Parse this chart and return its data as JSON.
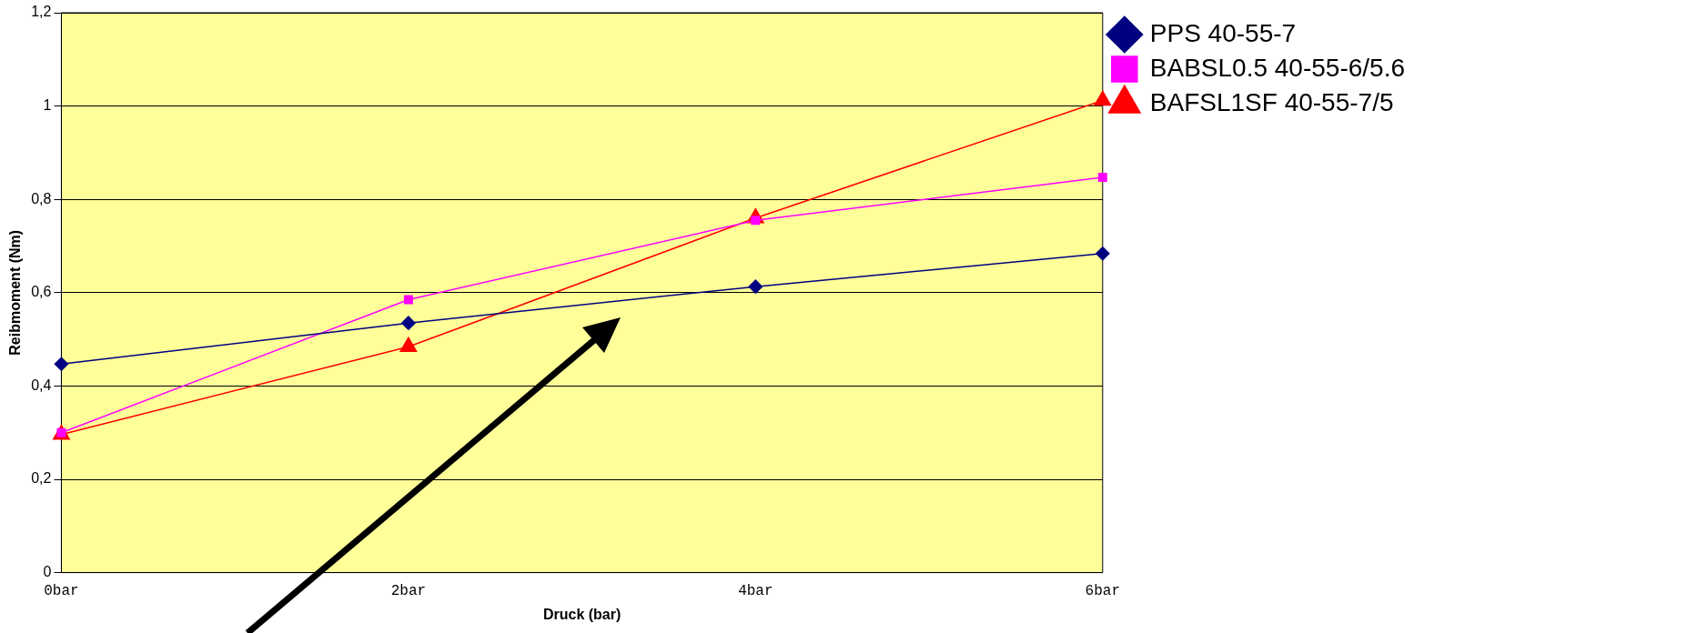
{
  "chart_data": {
    "type": "line",
    "xlabel": "Druck (bar)",
    "ylabel": "Reibmoment (Nm)",
    "categories": [
      "0bar",
      "2bar",
      "4bar",
      "6bar"
    ],
    "series": [
      {
        "name": "PPS 40-55-7",
        "color": "#000080",
        "marker": "diamond",
        "values": [
          0.447,
          0.535,
          0.613,
          0.684
        ]
      },
      {
        "name": "BABSL0.5 40-55-6/5.6",
        "color": "#ff00ff",
        "marker": "square",
        "values": [
          0.3,
          0.585,
          0.755,
          0.847
        ]
      },
      {
        "name": "BAFSL1SF 40-55-7/5",
        "color": "#ff0000",
        "marker": "triangle",
        "values": [
          0.296,
          0.484,
          0.76,
          1.012
        ]
      }
    ],
    "ylim": [
      0,
      1.2
    ],
    "yticks": [
      0,
      {
        "value": 0.2,
        "label": "0,2"
      },
      {
        "value": 0.4,
        "label": "0,4"
      },
      {
        "value": 0.6,
        "label": "0,6"
      },
      {
        "value": 0.8,
        "label": "0,8"
      },
      1,
      {
        "value": 1.2,
        "label": "1,2"
      }
    ],
    "grid": "y",
    "legend": "top right"
  }
}
